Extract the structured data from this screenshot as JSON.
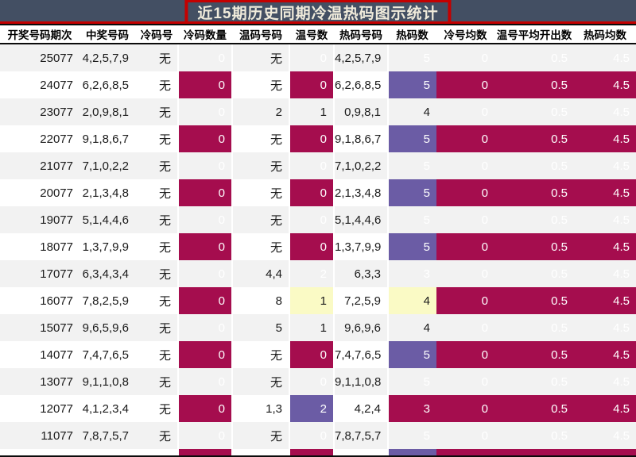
{
  "colors": {
    "slate": "#434F63",
    "red": "#C40000",
    "cream": "#F0EBDB",
    "crimson": "#A50D4E",
    "purple": "#6B5CA5",
    "yellow": "#FAFAC5",
    "rowalt": "#F2F2F2",
    "bottom_line": "#0B0B0B"
  },
  "chart_data": {
    "type": "table",
    "title": "近15期历史同期冷温热码图示统计",
    "legend_colors": {
      "cold_cell": "#A50D4E",
      "warm_highlight": "#FAFAC5",
      "hot_highlight": "#6B5CA5"
    },
    "columns": [
      {
        "key": "period",
        "label": "开奖号码期次"
      },
      {
        "key": "winning",
        "label": "中奖号码"
      },
      {
        "key": "cold_codes",
        "label": "冷码号"
      },
      {
        "key": "cold_count",
        "label": "冷码数量"
      },
      {
        "key": "warm_codes",
        "label": "温码号码"
      },
      {
        "key": "warm_count",
        "label": "温号数"
      },
      {
        "key": "hot_codes",
        "label": "热码号码"
      },
      {
        "key": "hot_count",
        "label": "热码数"
      },
      {
        "key": "cold_avg",
        "label": "冷号均数"
      },
      {
        "key": "warm_avg",
        "label": "温号平均开出数"
      },
      {
        "key": "hot_avg",
        "label": "热码均数"
      }
    ],
    "rows": [
      {
        "period": "25077",
        "winning": "4,2,5,7,9",
        "cold_codes": "无",
        "cold_count": "0",
        "warm_codes": "无",
        "warm_count": "0",
        "warm_count_bg": "crimson",
        "hot_codes": "4,2,5,7,9",
        "hot_count": "5",
        "hot_count_bg": "purple",
        "cold_avg": "0",
        "warm_avg": "0.5",
        "hot_avg": "4.5"
      },
      {
        "period": "24077",
        "winning": "6,2,6,8,5",
        "cold_codes": "无",
        "cold_count": "0",
        "warm_codes": "无",
        "warm_count": "0",
        "warm_count_bg": "crimson",
        "hot_codes": "6,2,6,8,5",
        "hot_count": "5",
        "hot_count_bg": "purple",
        "cold_avg": "0",
        "warm_avg": "0.5",
        "hot_avg": "4.5"
      },
      {
        "period": "23077",
        "winning": "2,0,9,8,1",
        "cold_codes": "无",
        "cold_count": "0",
        "warm_codes": "2",
        "warm_count": "1",
        "warm_count_bg": "yellow",
        "hot_codes": "0,9,8,1",
        "hot_count": "4",
        "hot_count_bg": "yellow",
        "cold_avg": "0",
        "warm_avg": "0.5",
        "hot_avg": "4.5"
      },
      {
        "period": "22077",
        "winning": "9,1,8,6,7",
        "cold_codes": "无",
        "cold_count": "0",
        "warm_codes": "无",
        "warm_count": "0",
        "warm_count_bg": "crimson",
        "hot_codes": "9,1,8,6,7",
        "hot_count": "5",
        "hot_count_bg": "purple",
        "cold_avg": "0",
        "warm_avg": "0.5",
        "hot_avg": "4.5"
      },
      {
        "period": "21077",
        "winning": "7,1,0,2,2",
        "cold_codes": "无",
        "cold_count": "0",
        "warm_codes": "无",
        "warm_count": "0",
        "warm_count_bg": "crimson",
        "hot_codes": "7,1,0,2,2",
        "hot_count": "5",
        "hot_count_bg": "purple",
        "cold_avg": "0",
        "warm_avg": "0.5",
        "hot_avg": "4.5"
      },
      {
        "period": "20077",
        "winning": "2,1,3,4,8",
        "cold_codes": "无",
        "cold_count": "0",
        "warm_codes": "无",
        "warm_count": "0",
        "warm_count_bg": "crimson",
        "hot_codes": "2,1,3,4,8",
        "hot_count": "5",
        "hot_count_bg": "purple",
        "cold_avg": "0",
        "warm_avg": "0.5",
        "hot_avg": "4.5"
      },
      {
        "period": "19077",
        "winning": "5,1,4,4,6",
        "cold_codes": "无",
        "cold_count": "0",
        "warm_codes": "无",
        "warm_count": "0",
        "warm_count_bg": "crimson",
        "hot_codes": "5,1,4,4,6",
        "hot_count": "5",
        "hot_count_bg": "purple",
        "cold_avg": "0",
        "warm_avg": "0.5",
        "hot_avg": "4.5"
      },
      {
        "period": "18077",
        "winning": "1,3,7,9,9",
        "cold_codes": "无",
        "cold_count": "0",
        "warm_codes": "无",
        "warm_count": "0",
        "warm_count_bg": "crimson",
        "hot_codes": "1,3,7,9,9",
        "hot_count": "5",
        "hot_count_bg": "purple",
        "cold_avg": "0",
        "warm_avg": "0.5",
        "hot_avg": "4.5"
      },
      {
        "period": "17077",
        "winning": "6,3,4,3,4",
        "cold_codes": "无",
        "cold_count": "0",
        "warm_codes": "4,4",
        "warm_count": "2",
        "warm_count_bg": "purple",
        "hot_codes": "6,3,3",
        "hot_count": "3",
        "hot_count_bg": "crimson",
        "cold_avg": "0",
        "warm_avg": "0.5",
        "hot_avg": "4.5"
      },
      {
        "period": "16077",
        "winning": "7,8,2,5,9",
        "cold_codes": "无",
        "cold_count": "0",
        "warm_codes": "8",
        "warm_count": "1",
        "warm_count_bg": "yellow",
        "hot_codes": "7,2,5,9",
        "hot_count": "4",
        "hot_count_bg": "yellow",
        "cold_avg": "0",
        "warm_avg": "0.5",
        "hot_avg": "4.5"
      },
      {
        "period": "15077",
        "winning": "9,6,5,9,6",
        "cold_codes": "无",
        "cold_count": "0",
        "warm_codes": "5",
        "warm_count": "1",
        "warm_count_bg": "yellow",
        "hot_codes": "9,6,9,6",
        "hot_count": "4",
        "hot_count_bg": "yellow",
        "cold_avg": "0",
        "warm_avg": "0.5",
        "hot_avg": "4.5"
      },
      {
        "period": "14077",
        "winning": "7,4,7,6,5",
        "cold_codes": "无",
        "cold_count": "0",
        "warm_codes": "无",
        "warm_count": "0",
        "warm_count_bg": "crimson",
        "hot_codes": "7,4,7,6,5",
        "hot_count": "5",
        "hot_count_bg": "purple",
        "cold_avg": "0",
        "warm_avg": "0.5",
        "hot_avg": "4.5"
      },
      {
        "period": "13077",
        "winning": "9,1,1,0,8",
        "cold_codes": "无",
        "cold_count": "0",
        "warm_codes": "无",
        "warm_count": "0",
        "warm_count_bg": "crimson",
        "hot_codes": "9,1,1,0,8",
        "hot_count": "5",
        "hot_count_bg": "purple",
        "cold_avg": "0",
        "warm_avg": "0.5",
        "hot_avg": "4.5"
      },
      {
        "period": "12077",
        "winning": "4,1,2,3,4",
        "cold_codes": "无",
        "cold_count": "0",
        "warm_codes": "1,3",
        "warm_count": "2",
        "warm_count_bg": "purple",
        "hot_codes": "4,2,4",
        "hot_count": "3",
        "hot_count_bg": "crimson",
        "cold_avg": "0",
        "warm_avg": "0.5",
        "hot_avg": "4.5"
      },
      {
        "period": "11077",
        "winning": "7,8,7,5,7",
        "cold_codes": "无",
        "cold_count": "0",
        "warm_codes": "无",
        "warm_count": "0",
        "warm_count_bg": "crimson",
        "hot_codes": "7,8,7,5,7",
        "hot_count": "5",
        "hot_count_bg": "purple",
        "cold_avg": "0",
        "warm_avg": "0.5",
        "hot_avg": "4.5"
      }
    ],
    "footer_strip_bgs": [
      null,
      null,
      null,
      "crimson",
      null,
      "crimson",
      null,
      "purple",
      "crimson",
      "crimson",
      "crimson"
    ],
    "layout": {
      "grid": false,
      "row_striping": "odd-gray",
      "value_alignment": "right"
    }
  }
}
